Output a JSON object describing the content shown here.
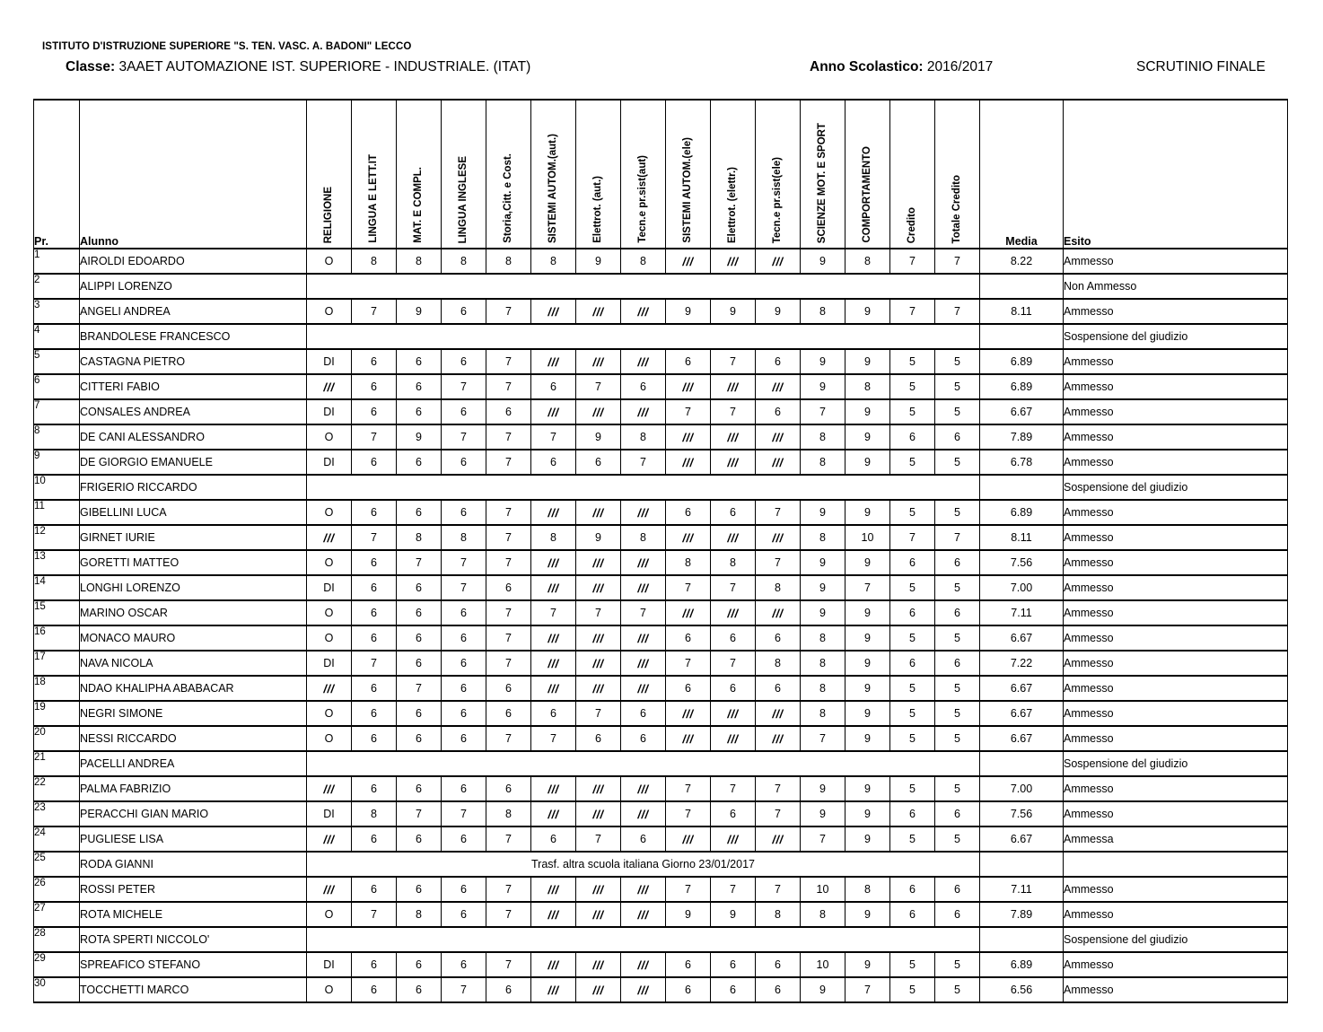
{
  "header": {
    "school": "ISTITUTO D'ISTRUZIONE SUPERIORE \"S. TEN. VASC. A. BADONI\" LECCO",
    "class_label": "Classe:",
    "class_value": "3AAET AUTOMAZIONE IST. SUPERIORE - INDUSTRIALE. (ITAT)",
    "year_label": "Anno Scolastico:",
    "year_value": "2016/2017",
    "scrutinio_title": "SCRUTINIO FINALE"
  },
  "table": {
    "col_pr": "Pr.",
    "col_alunno": "Alunno",
    "col_media": "Media",
    "col_esito": "Esito",
    "subjects": [
      "RELIGIONE",
      "LINGUA E LETT.IT",
      "MAT. E COMPL.",
      "LINGUA INGLESE",
      "Storia,Citt. e Cost.",
      "SISTEMI AUTOM.(aut.)",
      "Elettrot. (aut.)",
      "Tecn.e pr.sist(aut)",
      "SISTEMI AUTOM.(ele)",
      "Elettrot. (elettr.)",
      "Tecn.e pr.sist(ele)",
      "SCIENZE MOT. E SPORT",
      "COMPORTAMENTO",
      "Credito",
      "Totale Credito"
    ],
    "not_applicable_mark": "///",
    "rows": [
      {
        "pr": 1,
        "name": "AIROLDI EDOARDO",
        "grades": [
          "O",
          "8",
          "8",
          "8",
          "8",
          "8",
          "9",
          "8",
          "///",
          "///",
          "///",
          "9",
          "8",
          "7",
          "7"
        ],
        "media": "8.22",
        "esito": "Ammesso"
      },
      {
        "pr": 2,
        "name": "ALIPPI LORENZO",
        "note": "",
        "media": "",
        "esito": "Non Ammesso"
      },
      {
        "pr": 3,
        "name": "ANGELI ANDREA",
        "grades": [
          "O",
          "7",
          "9",
          "6",
          "7",
          "///",
          "///",
          "///",
          "9",
          "9",
          "9",
          "8",
          "9",
          "7",
          "7"
        ],
        "media": "8.11",
        "esito": "Ammesso"
      },
      {
        "pr": 4,
        "name": "BRANDOLESE FRANCESCO",
        "note": "",
        "media": "",
        "esito": "Sospensione del giudizio"
      },
      {
        "pr": 5,
        "name": "CASTAGNA PIETRO",
        "grades": [
          "DI",
          "6",
          "6",
          "6",
          "7",
          "///",
          "///",
          "///",
          "6",
          "7",
          "6",
          "9",
          "9",
          "5",
          "5"
        ],
        "media": "6.89",
        "esito": "Ammesso"
      },
      {
        "pr": 6,
        "name": "CITTERI FABIO",
        "grades": [
          "///",
          "6",
          "6",
          "7",
          "7",
          "6",
          "7",
          "6",
          "///",
          "///",
          "///",
          "9",
          "8",
          "5",
          "5"
        ],
        "media": "6.89",
        "esito": "Ammesso"
      },
      {
        "pr": 7,
        "name": "CONSALES ANDREA",
        "grades": [
          "DI",
          "6",
          "6",
          "6",
          "6",
          "///",
          "///",
          "///",
          "7",
          "7",
          "6",
          "7",
          "9",
          "5",
          "5"
        ],
        "media": "6.67",
        "esito": "Ammesso"
      },
      {
        "pr": 8,
        "name": "DE CANI ALESSANDRO",
        "grades": [
          "O",
          "7",
          "9",
          "7",
          "7",
          "7",
          "9",
          "8",
          "///",
          "///",
          "///",
          "8",
          "9",
          "6",
          "6"
        ],
        "media": "7.89",
        "esito": "Ammesso"
      },
      {
        "pr": 9,
        "name": "DE GIORGIO EMANUELE",
        "grades": [
          "DI",
          "6",
          "6",
          "6",
          "7",
          "6",
          "6",
          "7",
          "///",
          "///",
          "///",
          "8",
          "9",
          "5",
          "5"
        ],
        "media": "6.78",
        "esito": "Ammesso"
      },
      {
        "pr": 10,
        "name": "FRIGERIO RICCARDO",
        "note": "",
        "media": "",
        "esito": "Sospensione del giudizio"
      },
      {
        "pr": 11,
        "name": "GIBELLINI LUCA",
        "grades": [
          "O",
          "6",
          "6",
          "6",
          "7",
          "///",
          "///",
          "///",
          "6",
          "6",
          "7",
          "9",
          "9",
          "5",
          "5"
        ],
        "media": "6.89",
        "esito": "Ammesso"
      },
      {
        "pr": 12,
        "name": "GIRNET IURIE",
        "grades": [
          "///",
          "7",
          "8",
          "8",
          "7",
          "8",
          "9",
          "8",
          "///",
          "///",
          "///",
          "8",
          "10",
          "7",
          "7"
        ],
        "media": "8.11",
        "esito": "Ammesso"
      },
      {
        "pr": 13,
        "name": "GORETTI MATTEO",
        "grades": [
          "O",
          "6",
          "7",
          "7",
          "7",
          "///",
          "///",
          "///",
          "8",
          "8",
          "7",
          "9",
          "9",
          "6",
          "6"
        ],
        "media": "7.56",
        "esito": "Ammesso"
      },
      {
        "pr": 14,
        "name": "LONGHI LORENZO",
        "grades": [
          "DI",
          "6",
          "6",
          "7",
          "6",
          "///",
          "///",
          "///",
          "7",
          "7",
          "8",
          "9",
          "7",
          "5",
          "5"
        ],
        "media": "7.00",
        "esito": "Ammesso"
      },
      {
        "pr": 15,
        "name": "MARINO OSCAR",
        "grades": [
          "O",
          "6",
          "6",
          "6",
          "7",
          "7",
          "7",
          "7",
          "///",
          "///",
          "///",
          "9",
          "9",
          "6",
          "6"
        ],
        "media": "7.11",
        "esito": "Ammesso"
      },
      {
        "pr": 16,
        "name": "MONACO MAURO",
        "grades": [
          "O",
          "6",
          "6",
          "6",
          "7",
          "///",
          "///",
          "///",
          "6",
          "6",
          "6",
          "8",
          "9",
          "5",
          "5"
        ],
        "media": "6.67",
        "esito": "Ammesso"
      },
      {
        "pr": 17,
        "name": "NAVA NICOLA",
        "grades": [
          "DI",
          "7",
          "6",
          "6",
          "7",
          "///",
          "///",
          "///",
          "7",
          "7",
          "8",
          "8",
          "9",
          "6",
          "6"
        ],
        "media": "7.22",
        "esito": "Ammesso"
      },
      {
        "pr": 18,
        "name": "NDAO KHALIPHA ABABACAR",
        "grades": [
          "///",
          "6",
          "7",
          "6",
          "6",
          "///",
          "///",
          "///",
          "6",
          "6",
          "6",
          "8",
          "9",
          "5",
          "5"
        ],
        "media": "6.67",
        "esito": "Ammesso"
      },
      {
        "pr": 19,
        "name": "NEGRI SIMONE",
        "grades": [
          "O",
          "6",
          "6",
          "6",
          "6",
          "6",
          "7",
          "6",
          "///",
          "///",
          "///",
          "8",
          "9",
          "5",
          "5"
        ],
        "media": "6.67",
        "esito": "Ammesso"
      },
      {
        "pr": 20,
        "name": "NESSI RICCARDO",
        "grades": [
          "O",
          "6",
          "6",
          "6",
          "7",
          "7",
          "6",
          "6",
          "///",
          "///",
          "///",
          "7",
          "9",
          "5",
          "5"
        ],
        "media": "6.67",
        "esito": "Ammesso"
      },
      {
        "pr": 21,
        "name": "PACELLI ANDREA",
        "note": "",
        "media": "",
        "esito": "Sospensione del giudizio"
      },
      {
        "pr": 22,
        "name": "PALMA FABRIZIO",
        "grades": [
          "///",
          "6",
          "6",
          "6",
          "6",
          "///",
          "///",
          "///",
          "7",
          "7",
          "7",
          "9",
          "9",
          "5",
          "5"
        ],
        "media": "7.00",
        "esito": "Ammesso"
      },
      {
        "pr": 23,
        "name": "PERACCHI GIAN MARIO",
        "grades": [
          "DI",
          "8",
          "7",
          "7",
          "8",
          "///",
          "///",
          "///",
          "7",
          "6",
          "7",
          "9",
          "9",
          "6",
          "6"
        ],
        "media": "7.56",
        "esito": "Ammesso"
      },
      {
        "pr": 24,
        "name": "PUGLIESE LISA",
        "grades": [
          "///",
          "6",
          "6",
          "6",
          "7",
          "6",
          "7",
          "6",
          "///",
          "///",
          "///",
          "7",
          "9",
          "5",
          "5"
        ],
        "media": "6.67",
        "esito": "Ammessa"
      },
      {
        "pr": 25,
        "name": "RODA GIANNI",
        "note": "Trasf. altra scuola italiana Giorno 23/01/2017",
        "media": "",
        "esito": ""
      },
      {
        "pr": 26,
        "name": "ROSSI PETER",
        "grades": [
          "///",
          "6",
          "6",
          "6",
          "7",
          "///",
          "///",
          "///",
          "7",
          "7",
          "7",
          "10",
          "8",
          "6",
          "6"
        ],
        "media": "7.11",
        "esito": "Ammesso"
      },
      {
        "pr": 27,
        "name": "ROTA MICHELE",
        "grades": [
          "O",
          "7",
          "8",
          "6",
          "7",
          "///",
          "///",
          "///",
          "9",
          "9",
          "8",
          "8",
          "9",
          "6",
          "6"
        ],
        "media": "7.89",
        "esito": "Ammesso"
      },
      {
        "pr": 28,
        "name": "ROTA SPERTI NICCOLO'",
        "note": "",
        "media": "",
        "esito": "Sospensione del giudizio"
      },
      {
        "pr": 29,
        "name": "SPREAFICO STEFANO",
        "grades": [
          "DI",
          "6",
          "6",
          "6",
          "7",
          "///",
          "///",
          "///",
          "6",
          "6",
          "6",
          "10",
          "9",
          "5",
          "5"
        ],
        "media": "6.89",
        "esito": "Ammesso"
      },
      {
        "pr": 30,
        "name": "TOCCHETTI MARCO",
        "grades": [
          "O",
          "6",
          "6",
          "7",
          "6",
          "///",
          "///",
          "///",
          "6",
          "6",
          "6",
          "9",
          "7",
          "5",
          "5"
        ],
        "media": "6.56",
        "esito": "Ammesso"
      }
    ]
  }
}
